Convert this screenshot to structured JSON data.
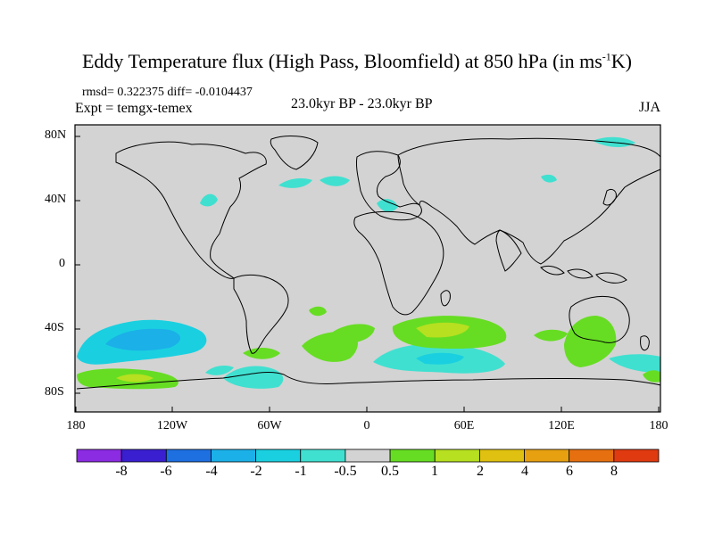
{
  "title": {
    "main": "Eddy Temperature flux (High Pass, Bloomfield) at 850 hPa (in ms",
    "sup": "-1",
    "end": "K)"
  },
  "stats": "rmsd= 0.322375 diff= -0.0104437",
  "experiment": "Expt = temgx-temex",
  "period": "23.0kyr BP - 23.0kyr BP",
  "season": "JJA",
  "map": {
    "ocean_color": "#d3d3d3",
    "lat_ticks": [
      "80N",
      "40N",
      "0",
      "40S",
      "80S"
    ],
    "lon_ticks": [
      "180",
      "120W",
      "60W",
      "0",
      "60E",
      "120E",
      "180"
    ]
  },
  "colorbar": {
    "colors": [
      "#8b2be2",
      "#3a1fd0",
      "#1e6fe0",
      "#1bb0e8",
      "#1ad0e0",
      "#40e0d0",
      "#d3d3d3",
      "#66dd22",
      "#b6e020",
      "#e0c010",
      "#e6a010",
      "#e67010",
      "#e03a10"
    ],
    "labels": [
      "-8",
      "-6",
      "-4",
      "-2",
      "-1",
      "-0.5",
      "0.5",
      "1",
      "2",
      "4",
      "6",
      "8"
    ]
  },
  "anomalies": {
    "negative_color": "#40e0d0",
    "moderate_negative_color": "#1ad0e0",
    "positive_color": "#66dd22",
    "strong_positive_color": "#b6e020"
  }
}
